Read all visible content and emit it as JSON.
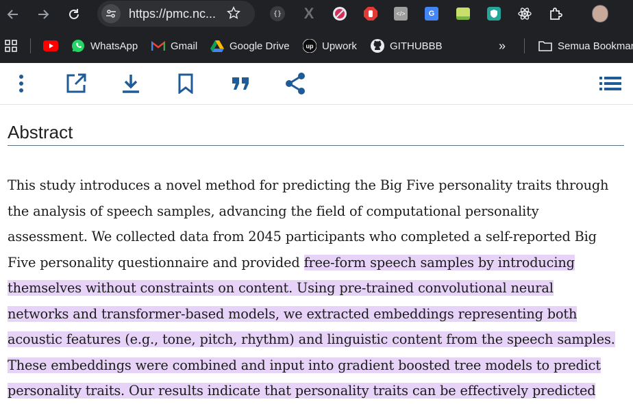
{
  "browser": {
    "url": "https://pmc.nc...",
    "back_icon": "back-arrow-icon",
    "forward_icon": "forward-arrow-icon",
    "reload_icon": "reload-icon"
  },
  "bookmarks": {
    "items": [
      {
        "label": "",
        "icon": "youtube-icon"
      },
      {
        "label": "WhatsApp",
        "icon": "whatsapp-icon"
      },
      {
        "label": "Gmail",
        "icon": "gmail-icon"
      },
      {
        "label": "Google Drive",
        "icon": "google-drive-icon"
      },
      {
        "label": "Upwork",
        "icon": "upwork-icon"
      },
      {
        "label": "GITHUBBB",
        "icon": "github-icon"
      }
    ],
    "overflow": "»",
    "folder_label": "Semua Bookmark"
  },
  "colors": {
    "accent": "#1f5b96",
    "highlight": "#e6d3f7",
    "chrome_dark": "#202124"
  },
  "article": {
    "heading": "Abstract",
    "lines": [
      {
        "plain": "This study introduces a novel method for predicting the Big Five personality traits through",
        "hl": ""
      },
      {
        "plain": "the analysis of speech samples, advancing the field of computational personality",
        "hl": ""
      },
      {
        "plain": "assessment. We collected data from 2045 participants who completed a self-reported Big",
        "hl": ""
      },
      {
        "plain": "Five personality questionnaire and provided ",
        "hl": "free-form speech samples by introducing"
      },
      {
        "plain": "",
        "hl": "themselves without constraints on content. Using pre-trained convolutional neural"
      },
      {
        "plain": "",
        "hl": "networks and transformer-based models, we extracted embeddings representing both"
      },
      {
        "plain": "",
        "hl": "acoustic features (e.g., tone, pitch, rhythm) and linguistic content from the speech samples."
      },
      {
        "plain": "",
        "hl": "These embeddings were combined and input into gradient boosted tree models to predict"
      },
      {
        "plain": "",
        "hl": "personality traits. Our results indicate that personality traits can be effectively predicted"
      }
    ]
  }
}
